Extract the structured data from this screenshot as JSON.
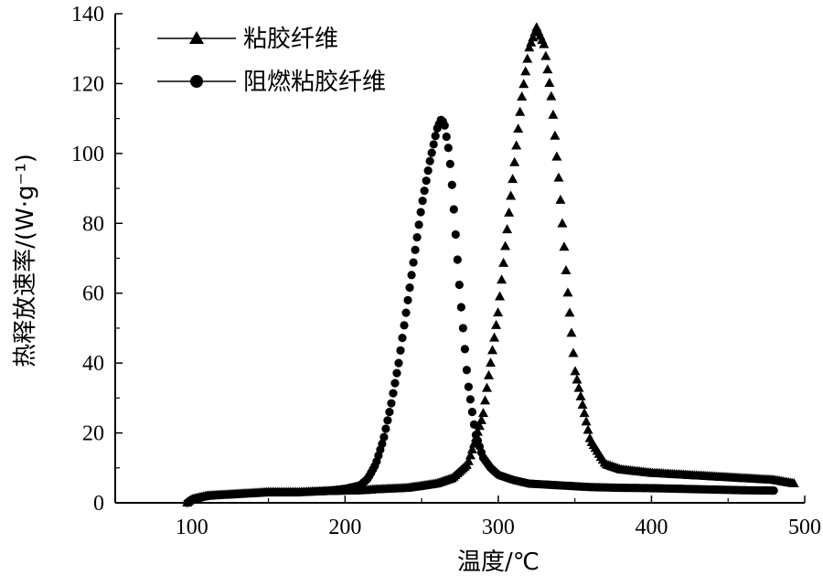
{
  "chart_data": {
    "type": "scatter",
    "title": "",
    "xlabel": "温度/℃",
    "ylabel": "热释放速率/(W·g⁻¹)",
    "xlim": [
      50,
      500
    ],
    "ylim": [
      0,
      140
    ],
    "xticks": [
      "100",
      "200",
      "300",
      "400",
      "500"
    ],
    "yticks": [
      "0",
      "20",
      "40",
      "60",
      "80",
      "100",
      "120",
      "140"
    ],
    "grid": false,
    "legend_position": "top-left",
    "series": [
      {
        "name": "粘胶纤维",
        "marker": "triangle",
        "color": "#000000",
        "x": [
          97,
          100,
          110,
          130,
          150,
          170,
          190,
          210,
          220,
          230,
          240,
          250,
          260,
          270,
          280,
          290,
          300,
          305,
          310,
          315,
          320,
          325,
          330,
          335,
          340,
          345,
          350,
          360,
          370,
          380,
          400,
          420,
          440,
          460,
          480,
          493
        ],
        "y": [
          0,
          1,
          2,
          2.5,
          3,
          3,
          3.3,
          3.5,
          3.8,
          4,
          4.2,
          4.8,
          5.5,
          7,
          11,
          25,
          55,
          75,
          95,
          115,
          130,
          136,
          131,
          115,
          90,
          62,
          38,
          18,
          11,
          9.5,
          8.5,
          8,
          7.5,
          7,
          6.5,
          5.5
        ]
      },
      {
        "name": "阻燃粘胶纤维",
        "marker": "circle",
        "color": "#000000",
        "x": [
          97,
          100,
          110,
          130,
          150,
          170,
          190,
          200,
          210,
          215,
          220,
          225,
          230,
          235,
          240,
          245,
          250,
          255,
          260,
          263,
          265,
          268,
          270,
          275,
          280,
          285,
          290,
          295,
          300,
          310,
          320,
          340,
          360,
          380,
          400,
          420,
          440,
          460,
          480
        ],
        "y": [
          0,
          1,
          2,
          2.5,
          3,
          3,
          3.5,
          4,
          5,
          7,
          11,
          18,
          28,
          40,
          55,
          70,
          85,
          97,
          107,
          110,
          108,
          100,
          90,
          60,
          35,
          20,
          13,
          10,
          8,
          6.5,
          5.5,
          5,
          4.5,
          4.3,
          4.2,
          4,
          3.8,
          3.6,
          3.5
        ]
      }
    ]
  }
}
